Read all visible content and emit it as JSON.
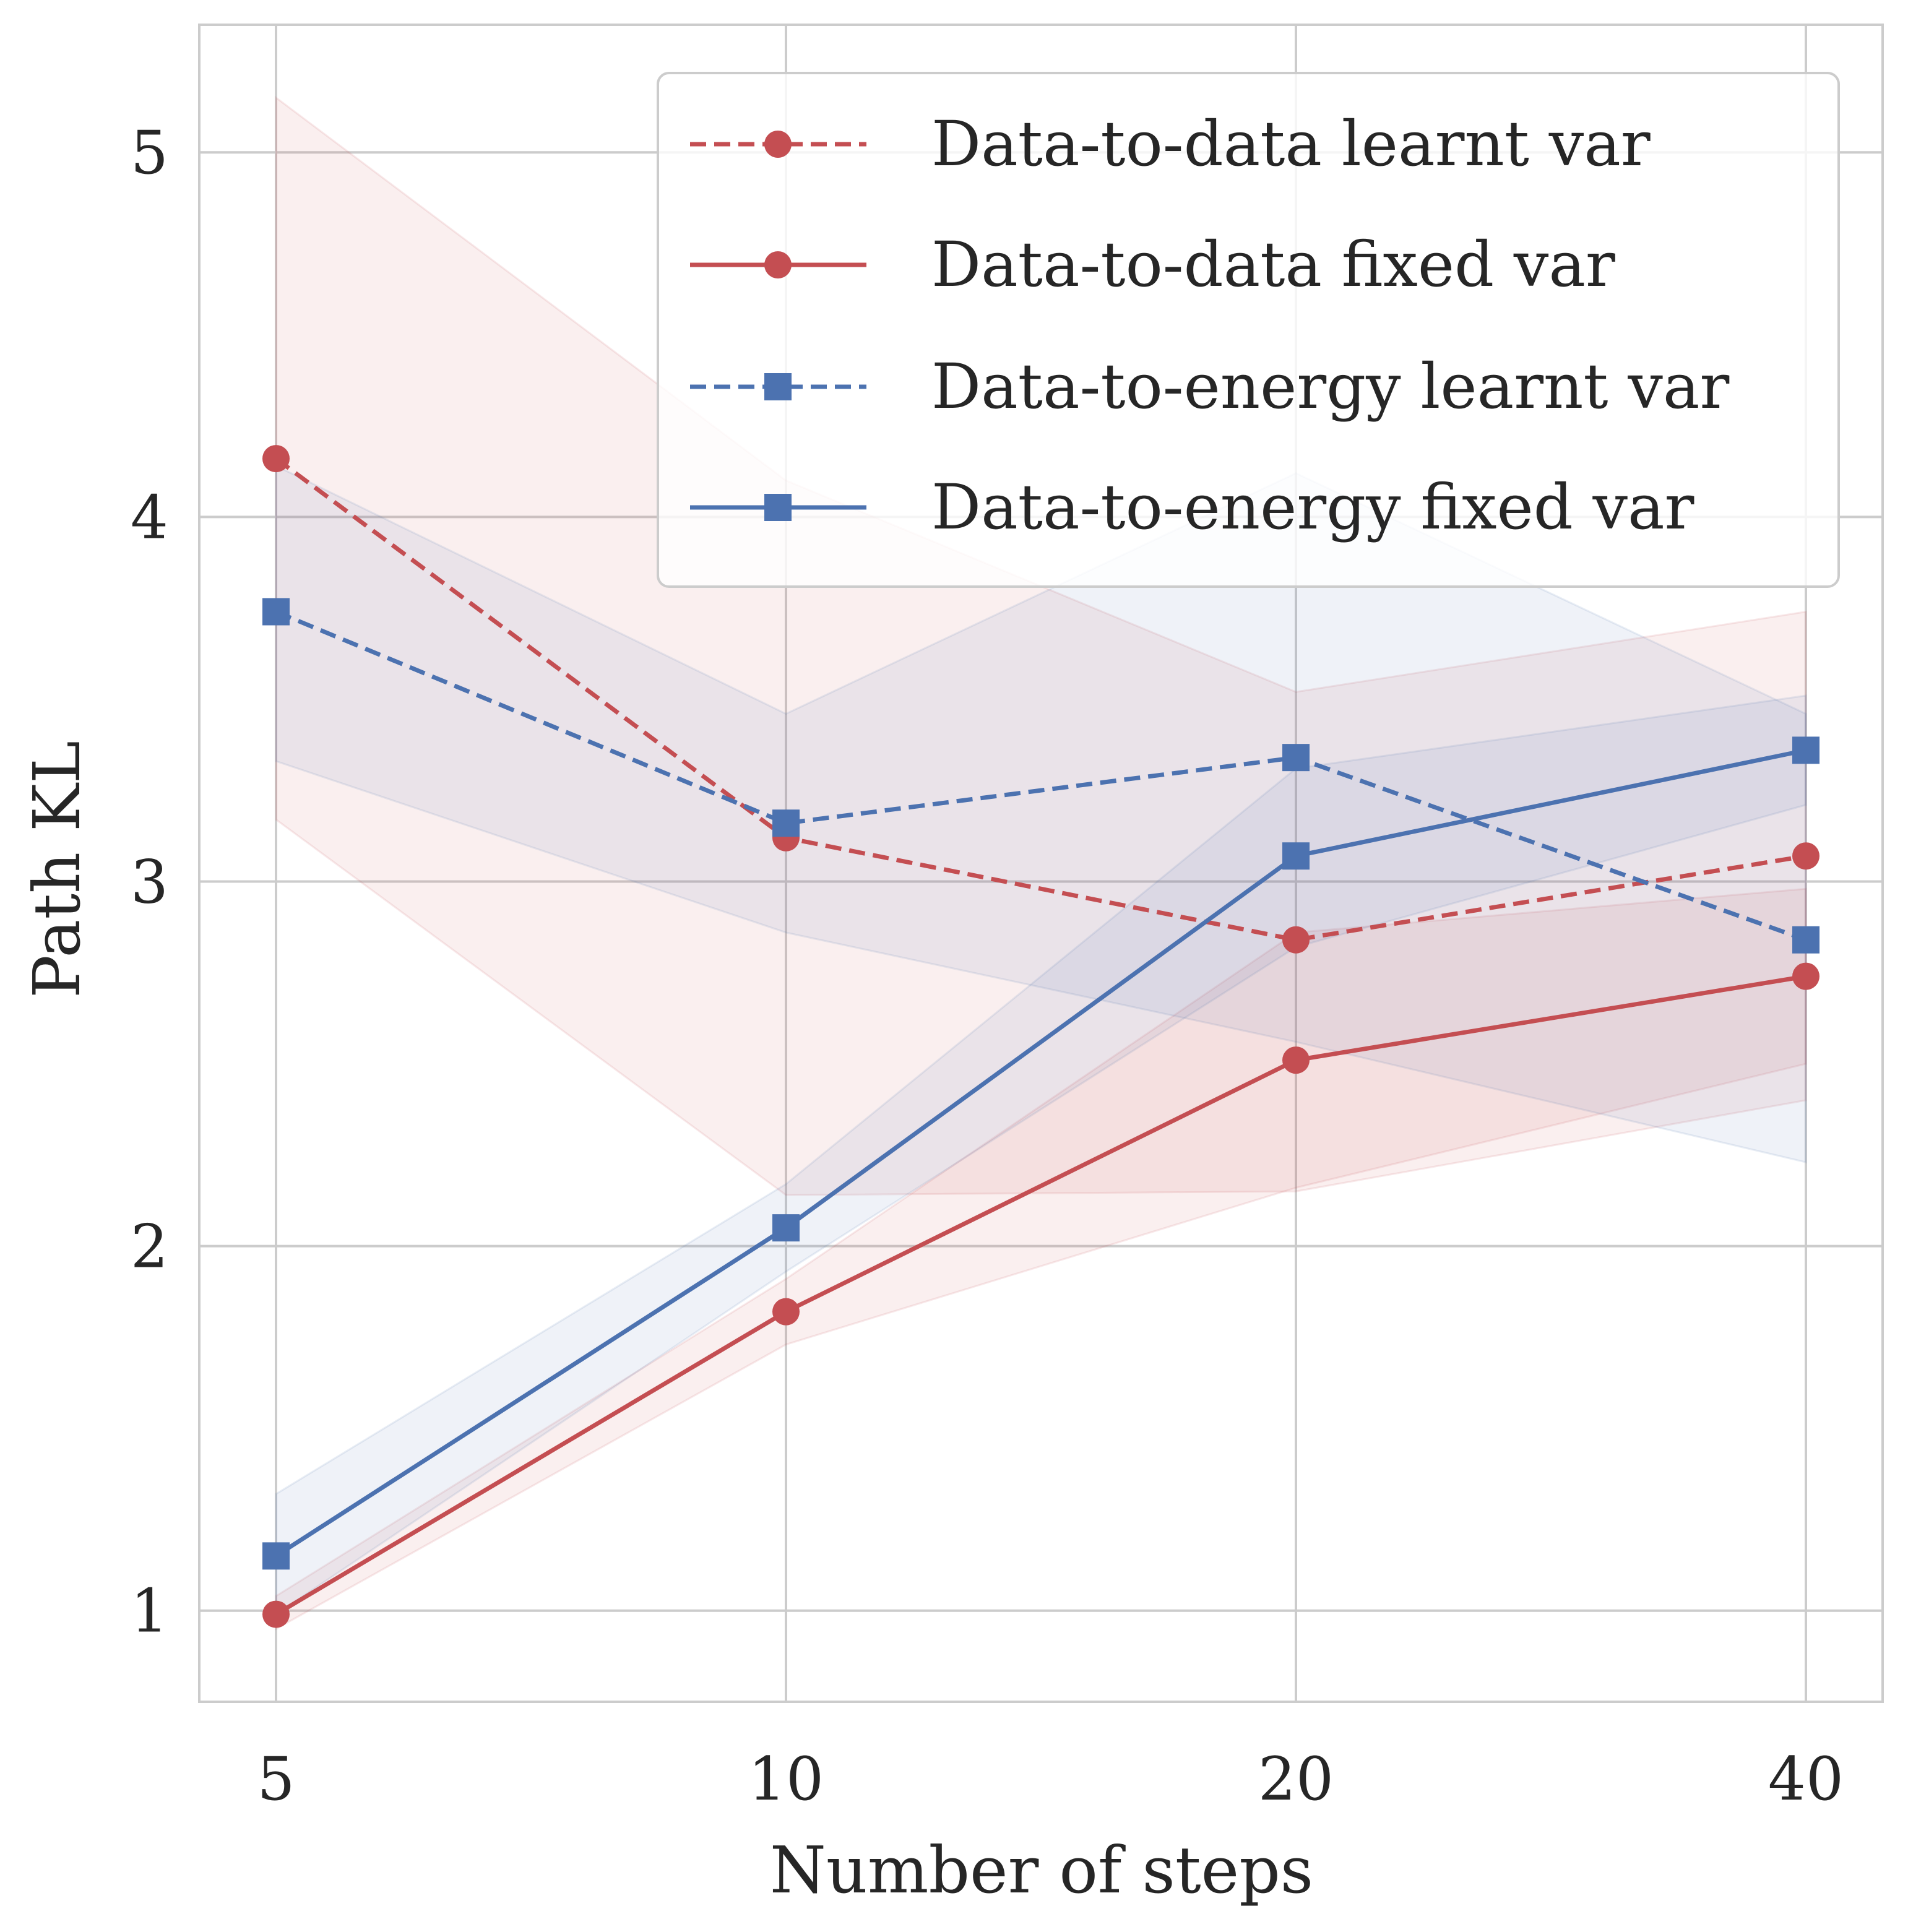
{
  "chart_data": {
    "type": "line",
    "title": "",
    "xlabel": "Number of steps",
    "ylabel": "Path KL",
    "x": [
      5,
      10,
      20,
      40
    ],
    "x_scale": "log2",
    "xticks": [
      "5",
      "10",
      "20",
      "40"
    ],
    "yticks": [
      "1",
      "2",
      "3",
      "4",
      "5"
    ],
    "ytick_values": [
      1,
      2,
      3,
      4,
      5
    ],
    "ylim": [
      0.75,
      5.35
    ],
    "grid": true,
    "legend_position": "top-right",
    "series": [
      {
        "name": "Data-to-data learnt var",
        "color": "#c44e52",
        "line": "dashed",
        "marker": "circle",
        "values": [
          4.16,
          3.12,
          2.84,
          3.07
        ],
        "band_low": [
          3.17,
          2.14,
          2.15,
          2.4
        ],
        "band_high": [
          5.15,
          4.1,
          3.52,
          3.74
        ]
      },
      {
        "name": "Data-to-data fixed var",
        "color": "#c44e52",
        "line": "solid",
        "marker": "circle",
        "values": [
          0.99,
          1.82,
          2.51,
          2.74
        ],
        "band_low": [
          0.95,
          1.73,
          2.16,
          2.5
        ],
        "band_high": [
          1.04,
          1.91,
          2.86,
          2.98
        ]
      },
      {
        "name": "Data-to-energy learnt var",
        "color": "#4c72b0",
        "line": "dashed",
        "marker": "square",
        "values": [
          3.74,
          3.16,
          3.34,
          2.84
        ],
        "band_low": [
          3.33,
          2.86,
          2.56,
          2.23
        ],
        "band_high": [
          4.14,
          3.46,
          4.12,
          3.46
        ]
      },
      {
        "name": "Data-to-energy fixed var",
        "color": "#4c72b0",
        "line": "solid",
        "marker": "square",
        "values": [
          1.15,
          2.05,
          3.07,
          3.36
        ],
        "band_low": [
          0.99,
          1.93,
          2.82,
          3.21
        ],
        "band_high": [
          1.32,
          2.17,
          3.31,
          3.51
        ]
      }
    ]
  }
}
